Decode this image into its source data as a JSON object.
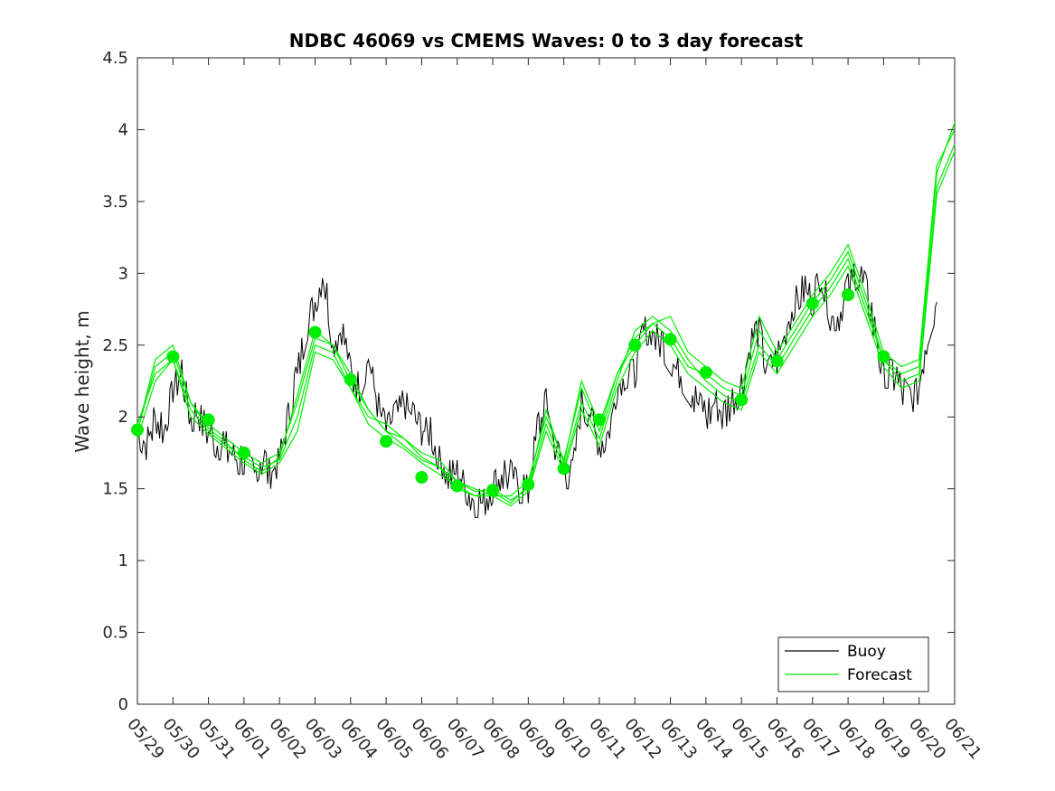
{
  "chart_data": {
    "type": "line",
    "title": "NDBC 46069 vs CMEMS Waves: 0 to 3 day forecast",
    "ylabel": "Wave height, m",
    "xlabel": "",
    "xlim": [
      "05/29",
      "06/21"
    ],
    "ylim": [
      0,
      4.5
    ],
    "yticks": [
      0,
      0.5,
      1,
      1.5,
      2,
      2.5,
      3,
      3.5,
      4,
      4.5
    ],
    "ytick_labels": [
      "0",
      "0.5",
      "1",
      "1.5",
      "2",
      "2.5",
      "3",
      "3.5",
      "4",
      "4.5"
    ],
    "xtick_labels": [
      "05/29",
      "05/30",
      "05/31",
      "06/01",
      "06/02",
      "06/03",
      "06/04",
      "06/05",
      "06/06",
      "06/07",
      "06/08",
      "06/09",
      "06/10",
      "06/11",
      "06/12",
      "06/13",
      "06/14",
      "06/15",
      "06/16",
      "06/17",
      "06/18",
      "06/19",
      "06/20",
      "06/21"
    ],
    "grid": false,
    "legend_position": "bottom-right",
    "colors": {
      "buoy": "#000000",
      "forecast": "#00ee00"
    },
    "series": [
      {
        "name": "Buoy",
        "color": "#000000",
        "x": [
          "05/29",
          "05/29 06:00",
          "05/29 12:00",
          "05/29 18:00",
          "05/30",
          "05/30 06:00",
          "05/30 12:00",
          "05/30 18:00",
          "05/31",
          "05/31 06:00",
          "05/31 12:00",
          "05/31 18:00",
          "06/01",
          "06/01 06:00",
          "06/01 12:00",
          "06/01 18:00",
          "06/02",
          "06/02 06:00",
          "06/02 12:00",
          "06/02 18:00",
          "06/03",
          "06/03 06:00",
          "06/03 12:00",
          "06/03 18:00",
          "06/04",
          "06/04 06:00",
          "06/04 12:00",
          "06/04 18:00",
          "06/05",
          "06/05 06:00",
          "06/05 12:00",
          "06/05 18:00",
          "06/06",
          "06/06 06:00",
          "06/06 12:00",
          "06/06 18:00",
          "06/07",
          "06/07 06:00",
          "06/07 12:00",
          "06/07 18:00",
          "06/08",
          "06/08 06:00",
          "06/08 12:00",
          "06/08 18:00",
          "06/09",
          "06/09 06:00",
          "06/09 12:00",
          "06/09 18:00",
          "06/10",
          "06/10 06:00",
          "06/10 12:00",
          "06/10 18:00",
          "06/11",
          "06/11 06:00",
          "06/11 12:00",
          "06/11 18:00",
          "06/12",
          "06/12 06:00",
          "06/12 12:00",
          "06/12 18:00",
          "06/13",
          "06/13 06:00",
          "06/13 12:00",
          "06/13 18:00",
          "06/14",
          "06/14 06:00",
          "06/14 12:00",
          "06/14 18:00",
          "06/15",
          "06/15 06:00",
          "06/15 12:00",
          "06/15 18:00",
          "06/16",
          "06/16 06:00",
          "06/16 12:00",
          "06/16 18:00",
          "06/17",
          "06/17 06:00",
          "06/17 12:00",
          "06/17 18:00",
          "06/18",
          "06/18 06:00",
          "06/18 12:00",
          "06/18 18:00",
          "06/19",
          "06/19 06:00",
          "06/19 12:00",
          "06/19 18:00",
          "06/20",
          "06/20 06:00",
          "06/20 12:00"
        ],
        "y": [
          1.9,
          1.8,
          2.0,
          1.9,
          2.2,
          2.3,
          2.0,
          2.0,
          1.9,
          1.8,
          1.8,
          1.7,
          1.7,
          1.6,
          1.7,
          1.6,
          1.7,
          2.0,
          2.3,
          2.6,
          2.8,
          3.0,
          2.5,
          2.6,
          2.3,
          2.2,
          2.4,
          2.1,
          1.9,
          2.0,
          2.1,
          2.0,
          1.9,
          1.9,
          1.7,
          1.6,
          1.6,
          1.5,
          1.4,
          1.4,
          1.5,
          1.6,
          1.6,
          1.5,
          1.5,
          1.9,
          2.1,
          1.8,
          1.6,
          1.6,
          2.1,
          2.0,
          1.8,
          1.9,
          2.2,
          2.3,
          2.3,
          2.6,
          2.6,
          2.5,
          2.4,
          2.3,
          2.2,
          2.1,
          2.0,
          2.1,
          2.0,
          2.1,
          2.2,
          2.5,
          2.6,
          2.3,
          2.4,
          2.6,
          2.8,
          2.9,
          2.8,
          3.0,
          2.7,
          2.7,
          2.9,
          3.0,
          2.9,
          2.6,
          2.3,
          2.3,
          2.2,
          2.1,
          2.2,
          2.6,
          2.8
        ]
      },
      {
        "name": "Forecast",
        "color": "#00ee00",
        "runs": [
          {
            "x": [
              "05/29",
              "05/29 12:00",
              "05/30",
              "05/30 12:00",
              "05/31",
              "05/31 12:00",
              "06/01",
              "06/01 12:00",
              "06/02",
              "06/02 12:00",
              "06/03",
              "06/03 12:00",
              "06/04",
              "06/04 12:00",
              "06/05",
              "06/05 12:00",
              "06/06",
              "06/06 12:00",
              "06/07",
              "06/07 12:00",
              "06/08",
              "06/08 12:00",
              "06/09",
              "06/09 12:00",
              "06/10",
              "06/10 12:00",
              "06/11",
              "06/11 12:00",
              "06/12",
              "06/12 12:00",
              "06/13",
              "06/13 12:00",
              "06/14",
              "06/14 12:00",
              "06/15",
              "06/15 12:00",
              "06/16",
              "06/16 12:00",
              "06/17",
              "06/17 12:00",
              "06/18",
              "06/18 12:00",
              "06/19",
              "06/19 12:00",
              "06/20",
              "06/20 12:00",
              "06/21"
            ],
            "y": [
              1.9,
              2.4,
              2.5,
              2.1,
              1.95,
              1.85,
              1.75,
              1.68,
              1.75,
              2.1,
              2.55,
              2.5,
              2.25,
              2.05,
              1.9,
              1.85,
              1.75,
              1.7,
              1.55,
              1.5,
              1.45,
              1.45,
              1.55,
              2.0,
              1.7,
              2.2,
              1.9,
              2.3,
              2.55,
              2.65,
              2.55,
              2.35,
              2.3,
              2.2,
              2.15,
              2.6,
              2.4,
              2.6,
              2.8,
              2.95,
              3.15,
              2.8,
              2.4,
              2.3,
              2.35,
              3.7,
              4.05
            ]
          },
          {
            "x": [
              "05/29",
              "05/29 12:00",
              "05/30",
              "05/30 12:00",
              "05/31",
              "05/31 12:00",
              "06/01",
              "06/01 12:00",
              "06/02",
              "06/02 12:00",
              "06/03",
              "06/03 12:00",
              "06/04",
              "06/04 12:00",
              "06/05",
              "06/05 12:00",
              "06/06",
              "06/06 12:00",
              "06/07",
              "06/07 12:00",
              "06/08",
              "06/08 12:00",
              "06/09",
              "06/09 12:00",
              "06/10",
              "06/10 12:00",
              "06/11",
              "06/11 12:00",
              "06/12",
              "06/12 12:00",
              "06/13",
              "06/13 12:00",
              "06/14",
              "06/14 12:00",
              "06/15",
              "06/15 12:00",
              "06/16",
              "06/16 12:00",
              "06/17",
              "06/17 12:00",
              "06/18",
              "06/18 12:00",
              "06/19",
              "06/19 12:00",
              "06/20",
              "06/20 12:00",
              "06/21"
            ],
            "y": [
              1.95,
              2.3,
              2.4,
              2.05,
              1.9,
              1.8,
              1.72,
              1.65,
              1.7,
              2.0,
              2.5,
              2.45,
              2.2,
              2.0,
              1.95,
              1.85,
              1.72,
              1.65,
              1.55,
              1.48,
              1.5,
              1.42,
              1.5,
              1.95,
              1.65,
              2.1,
              1.85,
              2.25,
              2.6,
              2.7,
              2.6,
              2.4,
              2.25,
              2.15,
              2.1,
              2.5,
              2.35,
              2.55,
              2.75,
              2.9,
              3.1,
              2.75,
              2.4,
              2.25,
              2.3,
              3.6,
              3.9
            ]
          },
          {
            "x": [
              "05/29",
              "05/29 12:00",
              "05/30",
              "05/30 12:00",
              "05/31",
              "05/31 12:00",
              "06/01",
              "06/01 12:00",
              "06/02",
              "06/02 12:00",
              "06/03",
              "06/03 12:00",
              "06/04",
              "06/04 12:00",
              "06/05",
              "06/05 12:00",
              "06/06",
              "06/06 12:00",
              "06/07",
              "06/07 12:00",
              "06/08",
              "06/08 12:00",
              "06/09",
              "06/09 12:00",
              "06/10",
              "06/10 12:00",
              "06/11",
              "06/11 12:00",
              "06/12",
              "06/12 12:00",
              "06/13",
              "06/13 12:00",
              "06/14",
              "06/14 12:00",
              "06/15",
              "06/15 12:00",
              "06/16",
              "06/16 12:00",
              "06/17",
              "06/17 12:00",
              "06/18",
              "06/18 12:00",
              "06/19",
              "06/19 12:00",
              "06/20",
              "06/20 12:00",
              "06/21"
            ],
            "y": [
              1.9,
              2.35,
              2.45,
              2.1,
              1.92,
              1.82,
              1.7,
              1.62,
              1.72,
              2.15,
              2.6,
              2.5,
              2.3,
              2.05,
              1.9,
              1.8,
              1.7,
              1.65,
              1.5,
              1.45,
              1.48,
              1.4,
              1.52,
              2.05,
              1.68,
              2.25,
              1.95,
              2.3,
              2.5,
              2.65,
              2.7,
              2.45,
              2.35,
              2.25,
              2.2,
              2.7,
              2.45,
              2.65,
              2.85,
              3.0,
              3.2,
              2.85,
              2.45,
              2.35,
              2.4,
              3.75,
              4.0
            ]
          },
          {
            "x": [
              "05/29",
              "05/29 12:00",
              "05/30",
              "05/30 12:00",
              "05/31",
              "05/31 12:00",
              "06/01",
              "06/01 12:00",
              "06/02",
              "06/02 12:00",
              "06/03",
              "06/03 12:00",
              "06/04",
              "06/04 12:00",
              "06/05",
              "06/05 12:00",
              "06/06",
              "06/06 12:00",
              "06/07",
              "06/07 12:00",
              "06/08",
              "06/08 12:00",
              "06/09",
              "06/09 12:00",
              "06/10",
              "06/10 12:00",
              "06/11",
              "06/11 12:00",
              "06/12",
              "06/12 12:00",
              "06/13",
              "06/13 12:00",
              "06/14",
              "06/14 12:00",
              "06/15",
              "06/15 12:00",
              "06/16",
              "06/16 12:00",
              "06/17",
              "06/17 12:00",
              "06/18",
              "06/18 12:00",
              "06/19",
              "06/19 12:00",
              "06/20",
              "06/20 12:00",
              "06/21"
            ],
            "y": [
              1.85,
              2.25,
              2.4,
              2.0,
              1.88,
              1.78,
              1.68,
              1.6,
              1.68,
              1.9,
              2.45,
              2.4,
              2.2,
              1.95,
              1.85,
              1.78,
              1.68,
              1.6,
              1.52,
              1.45,
              1.45,
              1.38,
              1.48,
              1.9,
              1.62,
              2.05,
              1.8,
              2.2,
              2.45,
              2.6,
              2.5,
              2.3,
              2.2,
              2.1,
              2.05,
              2.45,
              2.3,
              2.5,
              2.7,
              2.85,
              3.05,
              2.7,
              2.35,
              2.2,
              2.25,
              3.55,
              3.85
            ]
          }
        ],
        "markers": {
          "x": [
            "05/29",
            "05/30",
            "05/31",
            "06/01",
            "06/03",
            "06/04",
            "06/05",
            "06/06",
            "06/07",
            "06/08",
            "06/09",
            "06/10",
            "06/11",
            "06/12",
            "06/13",
            "06/14",
            "06/15",
            "06/16",
            "06/17",
            "06/18",
            "06/19"
          ],
          "y": [
            1.91,
            2.42,
            1.98,
            1.75,
            2.59,
            2.26,
            1.83,
            1.58,
            1.52,
            1.49,
            1.53,
            1.64,
            1.98,
            2.5,
            2.54,
            2.31,
            2.12,
            2.39,
            2.79,
            2.85,
            2.42
          ]
        }
      }
    ]
  }
}
